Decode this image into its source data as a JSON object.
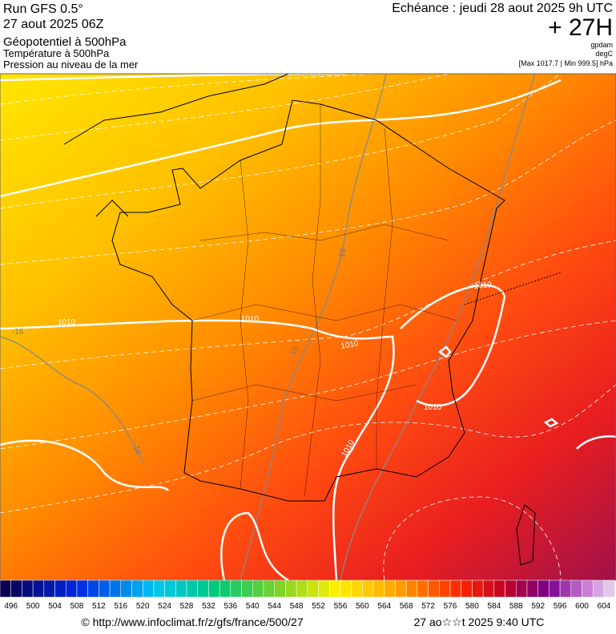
{
  "header": {
    "run": "Run GFS 0.5°",
    "run_date": "27 aout 2025 06Z",
    "field1": "Géopotentiel à 500hPa",
    "field2": "Température à 500hPa",
    "field3": "Pression au niveau de la mer",
    "forecast": "Echéance : jeudi 28 aout 2025 9h UTC",
    "lead": "+ 27H",
    "unit1": "gpdam",
    "unit2": "degC",
    "extremes": "[Max 1017.7 | Min 999.5] hPa"
  },
  "map": {
    "contour_labels": [
      "1010",
      "1010",
      "1010",
      "1010",
      "1010",
      "1010",
      "-16",
      "-16",
      "-16",
      "-16"
    ]
  },
  "scale": {
    "labels": [
      496,
      500,
      504,
      508,
      512,
      516,
      520,
      524,
      528,
      532,
      536,
      540,
      544,
      548,
      552,
      556,
      560,
      564,
      568,
      572,
      576,
      580,
      584,
      588,
      592,
      596,
      600,
      604
    ]
  },
  "footer": {
    "source": "© http://www.infoclimat.fr/z/gfs/france/500/27",
    "timestamp": "27 ao☆☆t 2025  9:40 UTC"
  }
}
